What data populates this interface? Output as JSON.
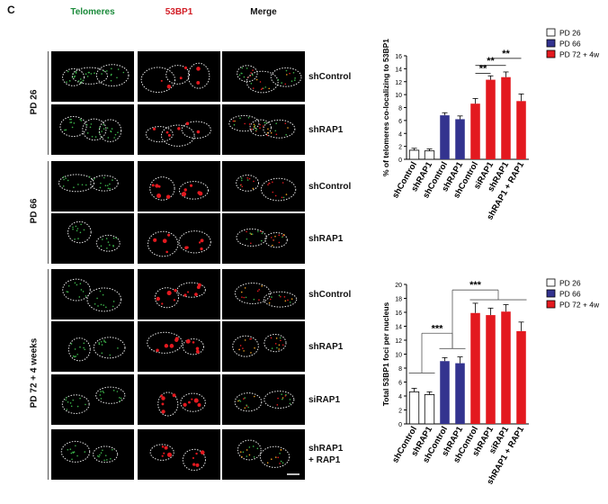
{
  "figure": {
    "panel_label": "C",
    "columns": [
      "Telomeres",
      "53BP1",
      "Merge"
    ],
    "column_colors": [
      "#1a8a3a",
      "#d21e26",
      "#111111"
    ],
    "groups": [
      {
        "label": "PD 26",
        "rows": [
          "shControl",
          "shRAP1"
        ]
      },
      {
        "label": "PD 66",
        "rows": [
          "shControl",
          "shRAP1"
        ]
      },
      {
        "label": "PD 72 + 4 weeks",
        "rows": [
          "shControl",
          "shRAP1",
          "siRAP1",
          "shRAP1\n+ RAP1"
        ]
      }
    ]
  },
  "legend": [
    {
      "label": "PD 26",
      "color": "#ffffff"
    },
    {
      "label": "PD 66",
      "color": "#33338f"
    },
    {
      "label": "PD 72 + 4w",
      "color": "#e3191f"
    }
  ],
  "chart_data": [
    {
      "type": "bar",
      "ylabel": "% of telomeres co-localizing to 53BP1",
      "ylim": [
        0,
        16
      ],
      "yticks": [
        0,
        2,
        4,
        6,
        8,
        10,
        12,
        14,
        16
      ],
      "categories": [
        "shControl",
        "shRAP1",
        "shControl",
        "shRAP1",
        "shControl",
        "siRAP1",
        "shRAP1",
        "shRAP1 + RAP1"
      ],
      "values": [
        1.4,
        1.3,
        6.8,
        6.2,
        8.6,
        12.3,
        12.7,
        9.0
      ],
      "errors": [
        0.3,
        0.3,
        0.4,
        0.5,
        0.8,
        0.6,
        0.8,
        1.1
      ],
      "groups": [
        0,
        0,
        1,
        1,
        2,
        2,
        2,
        2
      ],
      "significance": [
        {
          "from": 4,
          "to": 5,
          "label": "**"
        },
        {
          "from": 4,
          "to": 6,
          "label": "**"
        },
        {
          "from": 5,
          "to": 7,
          "label": "**"
        }
      ]
    },
    {
      "type": "bar",
      "ylabel": "Total 53BP1 foci per nucleus",
      "ylim": [
        0,
        20
      ],
      "yticks": [
        0,
        2,
        4,
        6,
        8,
        10,
        12,
        14,
        16,
        18,
        20
      ],
      "categories": [
        "shControl",
        "shRAP1",
        "shControl",
        "shRAP1",
        "shControl",
        "shRAP1",
        "siRAP1",
        "shRAP1 + RAP1"
      ],
      "values": [
        4.6,
        4.2,
        9.0,
        8.7,
        15.9,
        15.6,
        16.1,
        13.3
      ],
      "errors": [
        0.5,
        0.4,
        0.5,
        0.9,
        1.4,
        1.0,
        1.0,
        1.3
      ],
      "groups": [
        0,
        0,
        1,
        1,
        2,
        2,
        2,
        2
      ],
      "significance": [
        {
          "label": "***"
        },
        {
          "label": "***"
        }
      ]
    }
  ]
}
